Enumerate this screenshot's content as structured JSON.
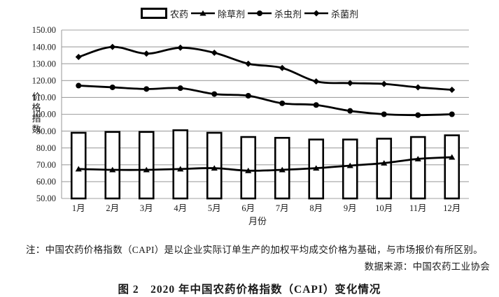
{
  "figure": {
    "legend": {
      "items": [
        {
          "label": "农药",
          "marker": "bar"
        },
        {
          "label": "除草剂",
          "marker": "triangle"
        },
        {
          "label": "杀虫剂",
          "marker": "circle"
        },
        {
          "label": "杀菌剂",
          "marker": "diamond"
        }
      ]
    },
    "note": "注：中国农药价格指数（CAPI）是以企业实际订单生产的加权平均成交价格为基础，与市场报价有所区别。",
    "source": "数据来源：中国农药工业协会",
    "caption": "图 2　2020 年中国农药价格指数（CAPI）变化情况"
  },
  "chart_data": {
    "type": "bar",
    "subtype": "combo-bar-lines",
    "title": "2020 年中国农药价格指数（CAPI）变化情况",
    "categories": [
      "1月",
      "2月",
      "3月",
      "4月",
      "5月",
      "6月",
      "7月",
      "8月",
      "9月",
      "10月",
      "11月",
      "12月"
    ],
    "xlabel": "月份",
    "ylabel": "价格指数",
    "ylim": [
      50,
      150
    ],
    "ytick_step": 10,
    "ytick_labels": [
      "50.00",
      "60.00",
      "70.00",
      "80.00",
      "90.00",
      "100.00",
      "110.00",
      "120.00",
      "130.00",
      "140.00",
      "150.00"
    ],
    "grid": true,
    "legend_position": "top",
    "series": [
      {
        "name": "农药",
        "type": "bar",
        "marker": "none",
        "values": [
          89,
          89.5,
          89.5,
          90.5,
          89,
          86.5,
          86,
          85,
          85,
          85.5,
          86.5,
          87.5
        ]
      },
      {
        "name": "除草剂",
        "type": "line",
        "marker": "triangle",
        "values": [
          67.5,
          67,
          67,
          67.5,
          68,
          66.5,
          67,
          68,
          69.5,
          71,
          73.5,
          74.5
        ]
      },
      {
        "name": "杀虫剂",
        "type": "line",
        "marker": "circle",
        "values": [
          117,
          116,
          115,
          115.5,
          112,
          111,
          106.5,
          105.5,
          102,
          100,
          99.5,
          100
        ]
      },
      {
        "name": "杀菌剂",
        "type": "line",
        "marker": "diamond",
        "values": [
          134,
          140,
          136,
          139.5,
          136.5,
          130,
          127.5,
          119.5,
          118.5,
          118,
          116,
          114.5
        ]
      }
    ]
  },
  "colors": {
    "series": "#000000",
    "bar_fill": "#ffffff",
    "grid": "#a0a0a0",
    "text": "#1a1a1a",
    "background": "#ffffff"
  }
}
